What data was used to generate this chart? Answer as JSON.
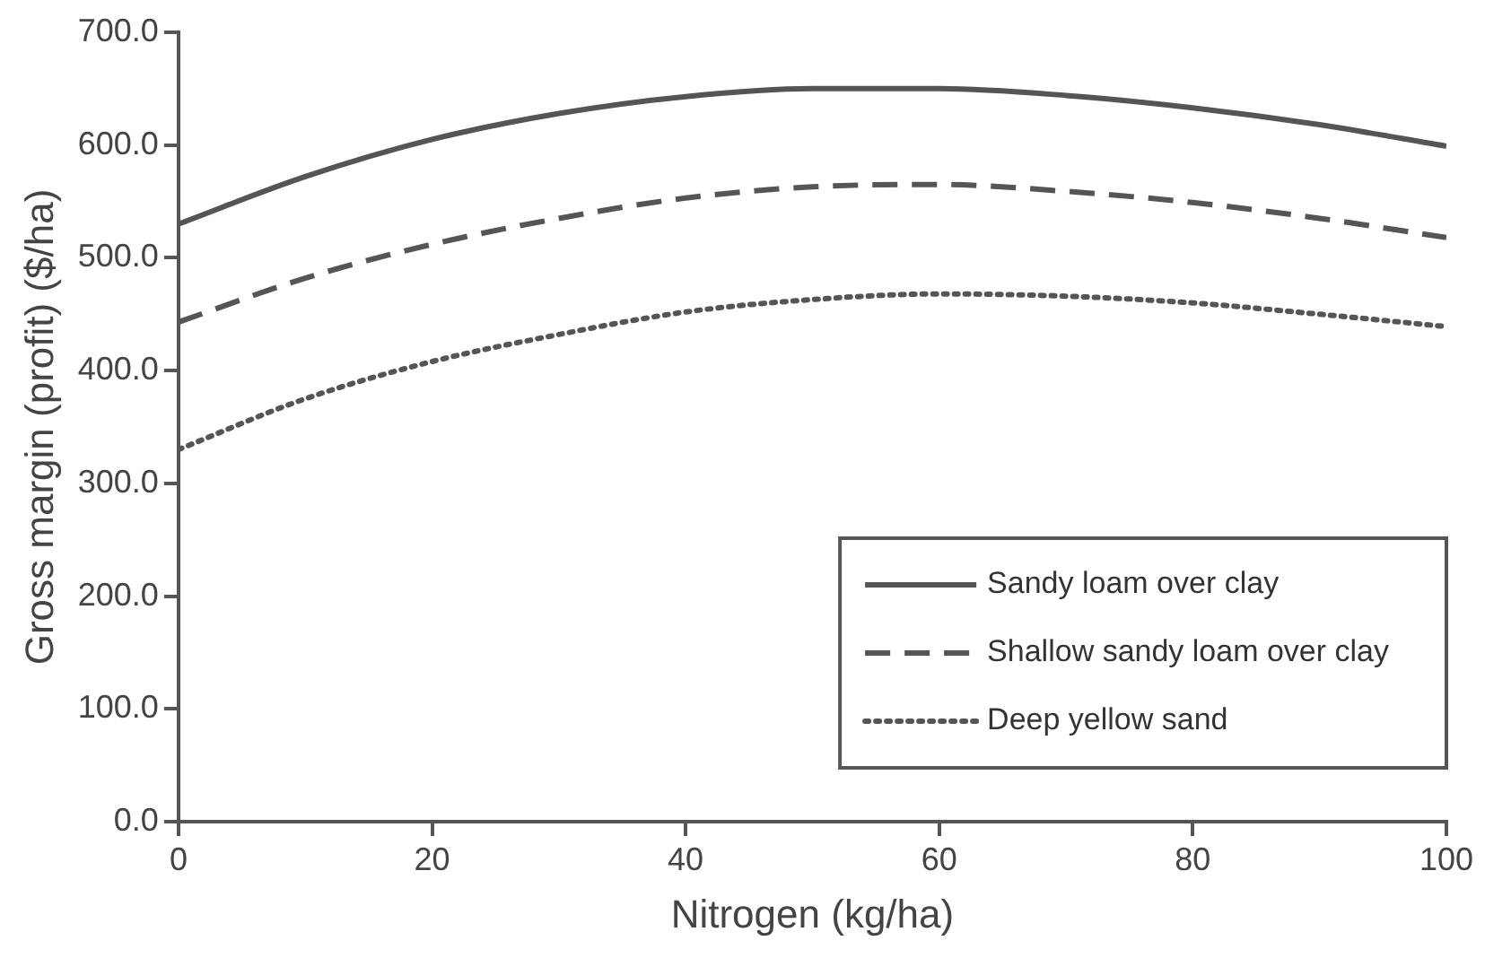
{
  "chart_data": {
    "type": "line",
    "xlabel": "Nitrogen (kg/ha)",
    "ylabel": "Gross margin (profit) ($/ha)",
    "x": [
      0,
      10,
      20,
      30,
      40,
      50,
      60,
      70,
      80,
      90,
      100
    ],
    "series": [
      {
        "name": "Sandy loam over clay",
        "color": "#555555",
        "line_style": "solid",
        "values": [
          530,
          572,
          605,
          628,
          643,
          650,
          650,
          644,
          633,
          618,
          599
        ]
      },
      {
        "name": "Shallow sandy loam over clay",
        "color": "#555555",
        "line_style": "dashed",
        "values": [
          443,
          482,
          512,
          535,
          553,
          563,
          565,
          559,
          549,
          535,
          518
        ]
      },
      {
        "name": "Deep yellow sand",
        "color": "#555555",
        "line_style": "dotted",
        "values": [
          330,
          375,
          408,
          432,
          452,
          463,
          468,
          466,
          460,
          450,
          439
        ]
      }
    ],
    "xlim": [
      0,
      100
    ],
    "xticks": [
      0,
      20,
      40,
      60,
      80,
      100
    ],
    "ylim": [
      0,
      700
    ],
    "yticks": [
      {
        "value": 0,
        "label": "0.0"
      },
      {
        "value": 100,
        "label": "100.0"
      },
      {
        "value": 200,
        "label": "200.0"
      },
      {
        "value": 300,
        "label": "300.0"
      },
      {
        "value": 400,
        "label": "400.0"
      },
      {
        "value": 500,
        "label": "500.0"
      },
      {
        "value": 600,
        "label": "600.0"
      },
      {
        "value": 700,
        "label": "700.0"
      }
    ],
    "grid": false,
    "legend": "bottom right",
    "marker": "none"
  }
}
